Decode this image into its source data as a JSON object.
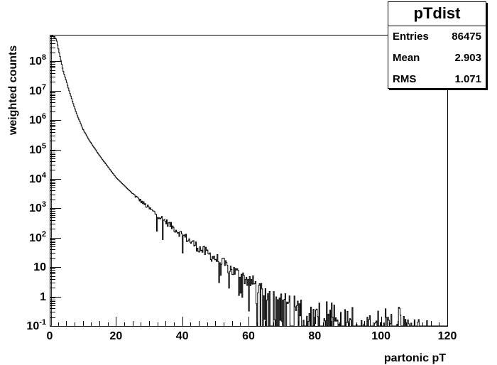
{
  "stats": {
    "title": "pTdist",
    "rows": [
      {
        "key": "Entries",
        "value": "86475"
      },
      {
        "key": "Mean",
        "value": "2.903"
      },
      {
        "key": "RMS",
        "value": "1.071"
      }
    ]
  },
  "chart_data": {
    "type": "histogram",
    "title": "",
    "xlabel": "partonic pT",
    "ylabel": "weighted counts",
    "xlim": [
      0,
      120
    ],
    "ylim_log10": [
      -1,
      8.9
    ],
    "y_scale": "log",
    "x_ticks": [
      "0",
      "20",
      "40",
      "60",
      "80",
      "100",
      "120"
    ],
    "y_ticks": [
      {
        "base": "10",
        "exp": "-1"
      },
      {
        "base": "1",
        "exp": ""
      },
      {
        "base": "10",
        "exp": ""
      },
      {
        "base": "10",
        "exp": "2"
      },
      {
        "base": "10",
        "exp": "3"
      },
      {
        "base": "10",
        "exp": "4"
      },
      {
        "base": "10",
        "exp": "5"
      },
      {
        "base": "10",
        "exp": "6"
      },
      {
        "base": "10",
        "exp": "7"
      },
      {
        "base": "10",
        "exp": "8"
      }
    ],
    "y_tick_values_log10": [
      -1,
      0,
      1,
      2,
      3,
      4,
      5,
      6,
      7,
      8
    ],
    "bin_width": 0.25,
    "curve_log10": [
      [
        0.5,
        8.9
      ],
      [
        2,
        8.75
      ],
      [
        4,
        7.7
      ],
      [
        6,
        6.95
      ],
      [
        8,
        6.25
      ],
      [
        10,
        5.7
      ],
      [
        12,
        5.3
      ],
      [
        15,
        4.8
      ],
      [
        20,
        4.05
      ],
      [
        25,
        3.5
      ],
      [
        30,
        3.0
      ],
      [
        35,
        2.55
      ],
      [
        40,
        2.1
      ],
      [
        45,
        1.65
      ],
      [
        50,
        1.3
      ],
      [
        55,
        0.9
      ],
      [
        60,
        0.55
      ],
      [
        65,
        0.2
      ],
      [
        70,
        -0.1
      ],
      [
        75,
        -0.3
      ],
      [
        80,
        -0.5
      ],
      [
        90,
        -0.7
      ],
      [
        100,
        -0.85
      ],
      [
        120,
        -1.0
      ]
    ],
    "fluctuation_onset": 25,
    "sparse_onset": 62,
    "last_filled_bin": 114
  }
}
